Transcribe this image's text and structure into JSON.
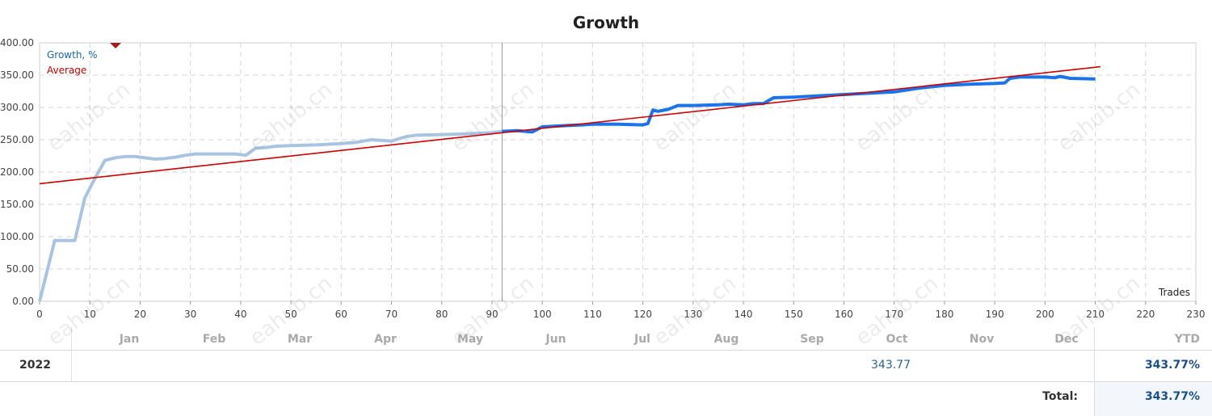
{
  "chart_data": {
    "type": "line",
    "title": "Growth",
    "xlabel": "Trades",
    "ylabel": "",
    "xlim": [
      0,
      230
    ],
    "ylim": [
      0,
      400
    ],
    "x_ticks": [
      "0",
      "10",
      "20",
      "30",
      "40",
      "50",
      "60",
      "70",
      "80",
      "90",
      "100",
      "110",
      "120",
      "130",
      "140",
      "150",
      "160",
      "170",
      "180",
      "190",
      "200",
      "210",
      "220",
      "230"
    ],
    "y_ticks": [
      "0.00",
      "50.00",
      "100.00",
      "150.00",
      "200.00",
      "250.00",
      "300.00",
      "350.00",
      "400.00"
    ],
    "grid": true,
    "legend": [
      {
        "name": "Growth, %",
        "color": "#1a73e8"
      },
      {
        "name": "Average",
        "color": "#cc0000"
      }
    ],
    "split_at_trade": 92,
    "series": [
      {
        "name": "Growth, %",
        "x": [
          0,
          3,
          5,
          7,
          9,
          11,
          13,
          15,
          17,
          19,
          21,
          23,
          25,
          27,
          29,
          31,
          33,
          35,
          37,
          39,
          41,
          43,
          45,
          47,
          50,
          55,
          60,
          63,
          66,
          70,
          73,
          75,
          80,
          85,
          90,
          92,
          95,
          98,
          100,
          105,
          108,
          110,
          115,
          120,
          121,
          122,
          123,
          125,
          127,
          130,
          135,
          137,
          140,
          142,
          144,
          146,
          150,
          155,
          160,
          165,
          170,
          175,
          180,
          185,
          190,
          192,
          193,
          195,
          200,
          202,
          203,
          205,
          210
        ],
        "values": [
          0,
          94,
          94,
          94,
          160,
          190,
          218,
          222,
          224,
          224,
          222,
          220,
          221,
          223,
          226,
          228,
          228,
          228,
          228,
          228,
          226,
          237,
          238,
          240,
          241,
          242,
          244,
          246,
          250,
          248,
          255,
          257,
          258,
          259,
          261,
          263,
          264,
          262,
          270,
          272,
          273,
          274,
          274,
          273,
          275,
          296,
          294,
          297,
          303,
          303,
          304,
          305,
          304,
          306,
          306,
          315,
          316,
          318,
          320,
          322,
          324,
          330,
          334,
          336,
          337,
          338,
          345,
          347,
          347,
          346,
          348,
          345,
          344
        ]
      },
      {
        "name": "Average",
        "x": [
          0,
          211
        ],
        "values": [
          182,
          363
        ]
      }
    ]
  },
  "table": {
    "months": [
      "Jan",
      "Feb",
      "Mar",
      "Apr",
      "May",
      "Jun",
      "Jul",
      "Aug",
      "Sep",
      "Oct",
      "Nov",
      "Dec"
    ],
    "ytd_header": "YTD",
    "year": "2022",
    "oct_value": "343.77",
    "ytd_value": "343.77%",
    "total_label": "Total:",
    "total_value": "343.77%"
  },
  "watermark": "eahub.cn",
  "colors": {
    "growth_light": "#a9c4e0",
    "growth_dark": "#1a73e8",
    "average": "#cc0000",
    "grid": "#d6d6d6"
  }
}
